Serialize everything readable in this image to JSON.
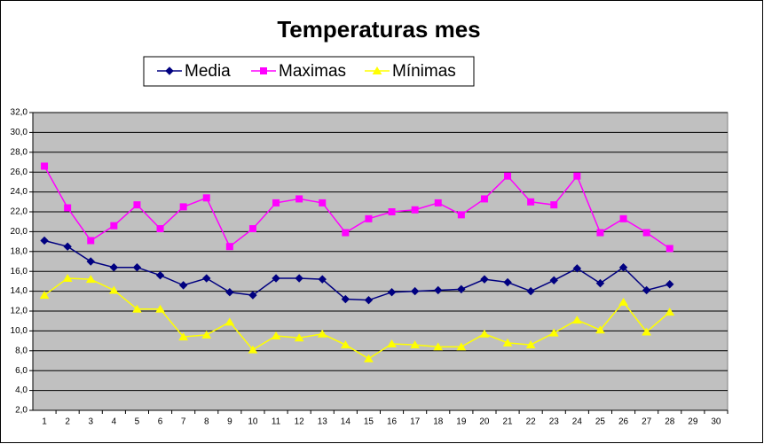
{
  "chart_data": {
    "type": "line",
    "title": "Temperaturas mes",
    "categories": [
      "1",
      "2",
      "3",
      "4",
      "5",
      "6",
      "7",
      "8",
      "9",
      "10",
      "11",
      "12",
      "13",
      "14",
      "15",
      "16",
      "17",
      "18",
      "19",
      "20",
      "21",
      "22",
      "23",
      "24",
      "25",
      "26",
      "27",
      "28",
      "29",
      "30"
    ],
    "series": [
      {
        "name": "Media",
        "color": "#000080",
        "marker": "diamond",
        "values": [
          19.1,
          18.5,
          17.0,
          16.4,
          16.4,
          15.6,
          14.6,
          15.3,
          13.9,
          13.6,
          15.3,
          15.3,
          15.2,
          13.2,
          13.1,
          13.9,
          14.0,
          14.1,
          14.2,
          15.2,
          14.9,
          14.0,
          15.1,
          16.3,
          14.8,
          16.4,
          14.1,
          14.7,
          null,
          null
        ]
      },
      {
        "name": "Maximas",
        "color": "#ff00ff",
        "marker": "square",
        "values": [
          26.6,
          22.4,
          19.1,
          20.6,
          22.7,
          20.3,
          22.5,
          23.4,
          18.5,
          20.3,
          22.9,
          23.3,
          22.9,
          19.9,
          21.3,
          22.0,
          22.2,
          22.9,
          21.7,
          23.3,
          25.6,
          23.0,
          22.7,
          25.6,
          19.9,
          21.3,
          19.9,
          18.3,
          null,
          null
        ]
      },
      {
        "name": "Mínimas",
        "color": "#ffff00",
        "marker": "triangle",
        "values": [
          13.6,
          15.3,
          15.2,
          14.1,
          12.2,
          12.2,
          9.4,
          9.6,
          10.9,
          8.1,
          9.5,
          9.3,
          9.7,
          8.6,
          7.2,
          8.7,
          8.6,
          8.4,
          8.4,
          9.7,
          8.8,
          8.6,
          9.8,
          11.1,
          10.1,
          12.9,
          9.9,
          11.9,
          null,
          null
        ]
      }
    ],
    "ylim": [
      2,
      32
    ],
    "yticks": [
      {
        "value": 2,
        "label": "2,0"
      },
      {
        "value": 4,
        "label": "4,0"
      },
      {
        "value": 6,
        "label": "6,0"
      },
      {
        "value": 8,
        "label": "8,0"
      },
      {
        "value": 10,
        "label": "10,0"
      },
      {
        "value": 12,
        "label": "12,0"
      },
      {
        "value": 14,
        "label": "14,0"
      },
      {
        "value": 16,
        "label": "16,0"
      },
      {
        "value": 18,
        "label": "18,0"
      },
      {
        "value": 20,
        "label": "20,0"
      },
      {
        "value": 22,
        "label": "22,0"
      },
      {
        "value": 24,
        "label": "24,0"
      },
      {
        "value": 26,
        "label": "26,0"
      },
      {
        "value": 28,
        "label": "28,0"
      },
      {
        "value": 30,
        "label": "30,0"
      },
      {
        "value": 32,
        "label": "32,0"
      }
    ],
    "grid": true,
    "plot_background": "#c0c0c0",
    "legend": "top"
  }
}
